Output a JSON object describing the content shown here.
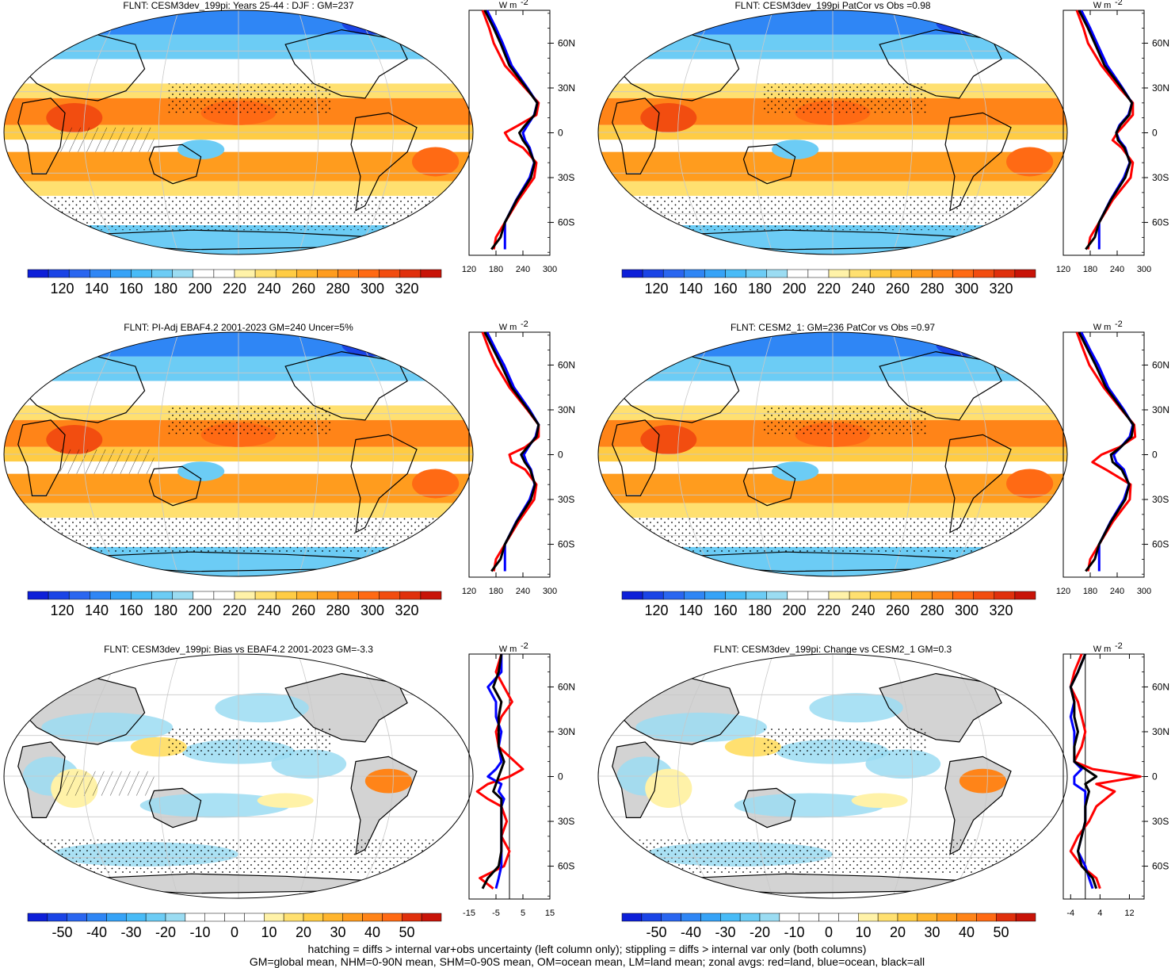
{
  "footnote": {
    "line1": "hatching = diffs > internal var+obs uncertainty (left column only); stippling = diffs > internal var only (both columns)",
    "line2": "GM=global mean, NHM=0-90N mean, SHM=0-90S mean, OM=ocean mean, LM=land mean; zonal avgs: red=land, blue=ocean, black=all"
  },
  "zonal_units": "W m",
  "zonal_units_exp": "-2",
  "lat_labels": [
    "60N",
    "30N",
    "0",
    "30S",
    "60S"
  ],
  "colormaps": {
    "absolute": [
      "#0d1fd8",
      "#1a44e6",
      "#2a66f0",
      "#2f86f5",
      "#36a3f7",
      "#48bbf7",
      "#6cccf5",
      "#9bdcf2",
      "#ffffff",
      "#ffffff",
      "#fff2a8",
      "#ffe070",
      "#ffcc44",
      "#ffb52e",
      "#ff9c1e",
      "#ff8418",
      "#ff6a14",
      "#f24d10",
      "#e0300c",
      "#c81408"
    ],
    "difference": [
      "#0d1fd8",
      "#1a44e6",
      "#2a66f0",
      "#2f86f5",
      "#36a3f7",
      "#48bbf7",
      "#6cccf5",
      "#9bdcf2",
      "#ffffff",
      "#ffffff",
      "#ffffff",
      "#ffffff",
      "#fff2a8",
      "#ffe070",
      "#ffcc44",
      "#ffb52e",
      "#ff9c1e",
      "#ff8418",
      "#ff6a14",
      "#e0300c",
      "#c81408"
    ]
  },
  "panels": [
    {
      "title": "FLNT: CESM3dev_199pi: Years 25-44 : DJF : GM=237",
      "cb_labels": [
        "120",
        "140",
        "160",
        "180",
        "200",
        "220",
        "240",
        "260",
        "280",
        "300",
        "320"
      ],
      "zonal_ticks": [
        "120",
        "180",
        "240",
        "300"
      ],
      "style": "abs"
    },
    {
      "title": "FLNT: CESM3dev_199pi PatCor vs Obs =0.98",
      "cb_labels": [
        "120",
        "140",
        "160",
        "180",
        "200",
        "220",
        "240",
        "260",
        "280",
        "300",
        "320"
      ],
      "zonal_ticks": [
        "120",
        "180",
        "240",
        "300"
      ],
      "style": "abs"
    },
    {
      "title": "FLNT: PI-Adj EBAF4.2 2001-2023 GM=240 Uncer=5%",
      "cb_labels": [
        "120",
        "140",
        "160",
        "180",
        "200",
        "220",
        "240",
        "260",
        "280",
        "300",
        "320"
      ],
      "zonal_ticks": [
        "120",
        "180",
        "240",
        "300"
      ],
      "style": "abs"
    },
    {
      "title": "FLNT: CESM2_1: GM=236 PatCor vs Obs =0.97",
      "cb_labels": [
        "120",
        "140",
        "160",
        "180",
        "200",
        "220",
        "240",
        "260",
        "280",
        "300",
        "320"
      ],
      "zonal_ticks": [
        "120",
        "180",
        "240",
        "300"
      ],
      "style": "abs"
    },
    {
      "title": "FLNT: CESM3dev_199pi: Bias vs EBAF4.2 2001-2023 GM=-3.3",
      "cb_labels": [
        "-50",
        "-40",
        "-30",
        "-20",
        "-10",
        "0",
        "10",
        "20",
        "30",
        "40",
        "50"
      ],
      "zonal_ticks": [
        "-15",
        "-5",
        "5",
        "15"
      ],
      "style": "diff"
    },
    {
      "title": "FLNT: CESM3dev_199pi: Change vs CESM2_1 GM=0.3",
      "cb_labels": [
        "-50",
        "-40",
        "-30",
        "-20",
        "-10",
        "0",
        "10",
        "20",
        "30",
        "40",
        "50"
      ],
      "zonal_ticks": [
        "-4",
        "4",
        "12"
      ],
      "style": "diff"
    }
  ],
  "chart_data": [
    {
      "type": "heatmap",
      "title": "FLNT: CESM3dev_199pi: Years 25-44 : DJF : GM=237",
      "colorbar_range": [
        120,
        320
      ],
      "zonal_xlim": [
        120,
        300
      ],
      "zonal_series": [
        {
          "name": "land",
          "color": "#ff0000",
          "lat": [
            82,
            70,
            60,
            45,
            30,
            20,
            12,
            5,
            0,
            -5,
            -10,
            -20,
            -30,
            -45,
            -60,
            -70,
            -78
          ],
          "values": [
            150,
            165,
            175,
            200,
            245,
            275,
            270,
            230,
            200,
            210,
            240,
            270,
            265,
            230,
            200,
            180,
            175
          ]
        },
        {
          "name": "ocean",
          "color": "#0000ff",
          "lat": [
            82,
            70,
            60,
            45,
            30,
            20,
            12,
            5,
            0,
            -5,
            -10,
            -20,
            -30,
            -45,
            -60,
            -70,
            -78
          ],
          "values": [
            160,
            180,
            195,
            215,
            250,
            272,
            265,
            250,
            240,
            245,
            255,
            265,
            255,
            225,
            200,
            200,
            200
          ]
        },
        {
          "name": "all",
          "color": "#000000",
          "lat": [
            82,
            70,
            60,
            45,
            30,
            20,
            12,
            5,
            0,
            -5,
            -10,
            -20,
            -30,
            -45,
            -60,
            -70,
            -78
          ],
          "values": [
            155,
            175,
            190,
            210,
            248,
            272,
            266,
            245,
            232,
            240,
            252,
            266,
            258,
            226,
            200,
            190,
            170
          ]
        }
      ]
    },
    {
      "type": "heatmap",
      "title": "FLNT: CESM3dev_199pi PatCor vs Obs =0.98",
      "colorbar_range": [
        120,
        320
      ],
      "zonal_xlim": [
        120,
        300
      ],
      "zonal_series": [
        {
          "name": "land",
          "color": "#ff0000",
          "lat": [
            82,
            70,
            60,
            45,
            30,
            20,
            12,
            5,
            0,
            -5,
            -10,
            -20,
            -30,
            -45,
            -60,
            -70,
            -78
          ],
          "values": [
            150,
            165,
            175,
            205,
            245,
            275,
            275,
            255,
            240,
            230,
            250,
            275,
            270,
            230,
            200,
            180,
            175
          ]
        },
        {
          "name": "ocean",
          "color": "#0000ff",
          "lat": [
            82,
            70,
            60,
            45,
            30,
            20,
            12,
            5,
            0,
            -5,
            -10,
            -20,
            -30,
            -45,
            -60,
            -70,
            -78
          ],
          "values": [
            160,
            180,
            195,
            218,
            252,
            273,
            265,
            245,
            238,
            245,
            258,
            268,
            255,
            225,
            200,
            200,
            200
          ]
        },
        {
          "name": "all",
          "color": "#000000",
          "lat": [
            82,
            70,
            60,
            45,
            30,
            20,
            12,
            5,
            0,
            -5,
            -10,
            -20,
            -30,
            -45,
            -60,
            -70,
            -78
          ],
          "values": [
            155,
            175,
            190,
            212,
            250,
            273,
            267,
            247,
            238,
            242,
            256,
            269,
            258,
            226,
            200,
            190,
            170
          ]
        }
      ]
    },
    {
      "type": "heatmap",
      "title": "FLNT: PI-Adj EBAF4.2 2001-2023 GM=240 Uncer=5%",
      "colorbar_range": [
        120,
        320
      ],
      "zonal_xlim": [
        120,
        300
      ],
      "zonal_series": [
        {
          "name": "land",
          "color": "#ff0000",
          "lat": [
            82,
            70,
            60,
            45,
            30,
            20,
            12,
            5,
            0,
            -5,
            -10,
            -20,
            -30,
            -45,
            -60,
            -70,
            -78
          ],
          "values": [
            150,
            165,
            180,
            210,
            250,
            275,
            275,
            245,
            210,
            215,
            245,
            270,
            265,
            230,
            200,
            180,
            175
          ]
        },
        {
          "name": "ocean",
          "color": "#0000ff",
          "lat": [
            82,
            70,
            60,
            45,
            30,
            20,
            12,
            5,
            0,
            -5,
            -10,
            -20,
            -30,
            -45,
            -60,
            -70,
            -78
          ],
          "values": [
            160,
            180,
            198,
            220,
            255,
            275,
            268,
            252,
            242,
            248,
            258,
            266,
            255,
            225,
            200,
            200,
            200
          ]
        },
        {
          "name": "all",
          "color": "#000000",
          "lat": [
            82,
            70,
            60,
            45,
            30,
            20,
            12,
            5,
            0,
            -5,
            -10,
            -20,
            -30,
            -45,
            -60,
            -70,
            -78
          ],
          "values": [
            155,
            175,
            192,
            215,
            252,
            275,
            270,
            250,
            236,
            244,
            256,
            267,
            258,
            226,
            200,
            190,
            170
          ]
        }
      ]
    },
    {
      "type": "heatmap",
      "title": "FLNT: CESM2_1: GM=236 PatCor vs Obs =0.97",
      "colorbar_range": [
        120,
        320
      ],
      "zonal_xlim": [
        120,
        300
      ],
      "zonal_series": [
        {
          "name": "land",
          "color": "#ff0000",
          "lat": [
            82,
            70,
            60,
            45,
            30,
            20,
            12,
            5,
            0,
            -5,
            -10,
            -20,
            -30,
            -45,
            -60,
            -70,
            -78
          ],
          "values": [
            150,
            165,
            178,
            210,
            250,
            278,
            280,
            245,
            205,
            185,
            215,
            270,
            268,
            230,
            200,
            180,
            175
          ]
        },
        {
          "name": "ocean",
          "color": "#0000ff",
          "lat": [
            82,
            70,
            60,
            45,
            30,
            20,
            12,
            5,
            0,
            -5,
            -10,
            -20,
            -30,
            -45,
            -60,
            -70,
            -78
          ],
          "values": [
            160,
            180,
            198,
            220,
            255,
            275,
            268,
            248,
            232,
            238,
            255,
            266,
            255,
            225,
            200,
            200,
            200
          ]
        },
        {
          "name": "all",
          "color": "#000000",
          "lat": [
            82,
            70,
            60,
            45,
            30,
            20,
            12,
            5,
            0,
            -5,
            -10,
            -20,
            -30,
            -45,
            -60,
            -70,
            -78
          ],
          "values": [
            155,
            175,
            192,
            215,
            252,
            276,
            272,
            248,
            226,
            230,
            250,
            267,
            258,
            226,
            200,
            190,
            170
          ]
        }
      ]
    },
    {
      "type": "heatmap",
      "title": "FLNT: CESM3dev_199pi: Bias vs EBAF4.2 2001-2023 GM=-3.3",
      "colorbar_range": [
        -50,
        50
      ],
      "zonal_xlim": [
        -15,
        15
      ],
      "zonal_series": [
        {
          "name": "land",
          "color": "#ff0000",
          "lat": [
            82,
            70,
            60,
            50,
            40,
            30,
            20,
            10,
            5,
            0,
            -5,
            -10,
            -15,
            -20,
            -30,
            -40,
            -50,
            -60,
            -68,
            -75
          ],
          "values": [
            -3,
            -5,
            -2,
            1,
            -3,
            -5,
            -4,
            2,
            5,
            0,
            -8,
            -12,
            -8,
            -3,
            -1,
            -3,
            0,
            -2,
            -11,
            -6
          ]
        },
        {
          "name": "ocean",
          "color": "#0000ff",
          "lat": [
            82,
            70,
            60,
            50,
            40,
            30,
            20,
            10,
            5,
            0,
            -5,
            -10,
            -15,
            -20,
            -30,
            -40,
            -50,
            -60,
            -68,
            -75
          ],
          "values": [
            -3,
            -3,
            -8,
            -5,
            -5,
            -3,
            -4,
            -3,
            -5,
            -8,
            -3,
            -4,
            -2,
            -3,
            -3,
            -3,
            -3,
            -3,
            -4,
            -5
          ]
        },
        {
          "name": "all",
          "color": "#000000",
          "lat": [
            82,
            70,
            60,
            50,
            40,
            30,
            20,
            10,
            5,
            0,
            -5,
            -10,
            -15,
            -20,
            -30,
            -40,
            -50,
            -60,
            -68,
            -75
          ],
          "values": [
            -3,
            -4,
            -6,
            -3,
            -4,
            -4,
            -4,
            -2,
            -3,
            -4,
            -5,
            -6,
            -3,
            -3,
            -3,
            -3,
            -3,
            -4,
            -8,
            -10
          ]
        }
      ]
    },
    {
      "type": "heatmap",
      "title": "FLNT: CESM3dev_199pi: Change vs CESM2_1 GM=0.3",
      "colorbar_range": [
        -50,
        50
      ],
      "zonal_xlim": [
        -6,
        16
      ],
      "zonal_series": [
        {
          "name": "land",
          "color": "#ff0000",
          "lat": [
            82,
            70,
            60,
            50,
            40,
            30,
            20,
            10,
            5,
            0,
            -5,
            -10,
            -20,
            -30,
            -40,
            -50,
            -60,
            -68,
            -75
          ],
          "values": [
            -1,
            -3,
            -4,
            -2,
            -1,
            0,
            -1,
            -3,
            2,
            15,
            3,
            8,
            3,
            1,
            -2,
            -4,
            -1,
            3,
            4
          ]
        },
        {
          "name": "ocean",
          "color": "#0000ff",
          "lat": [
            82,
            70,
            60,
            50,
            40,
            30,
            20,
            10,
            5,
            0,
            -5,
            -10,
            -20,
            -30,
            -40,
            -50,
            -60,
            -68,
            -75
          ],
          "values": [
            0,
            -2,
            -4,
            -3,
            -4,
            -3,
            -3,
            -3,
            -1,
            -3,
            -3,
            0,
            0,
            0,
            -1,
            -2,
            0,
            1,
            2
          ]
        },
        {
          "name": "all",
          "color": "#000000",
          "lat": [
            82,
            70,
            60,
            50,
            40,
            30,
            20,
            10,
            5,
            0,
            -5,
            -10,
            -20,
            -30,
            -40,
            -50,
            -60,
            -68,
            -75
          ],
          "values": [
            0,
            -2,
            -4,
            -3,
            -3,
            -2,
            -3,
            -3,
            0,
            3,
            0,
            1,
            0,
            0,
            -1,
            -2,
            -1,
            2,
            3
          ]
        }
      ]
    }
  ]
}
